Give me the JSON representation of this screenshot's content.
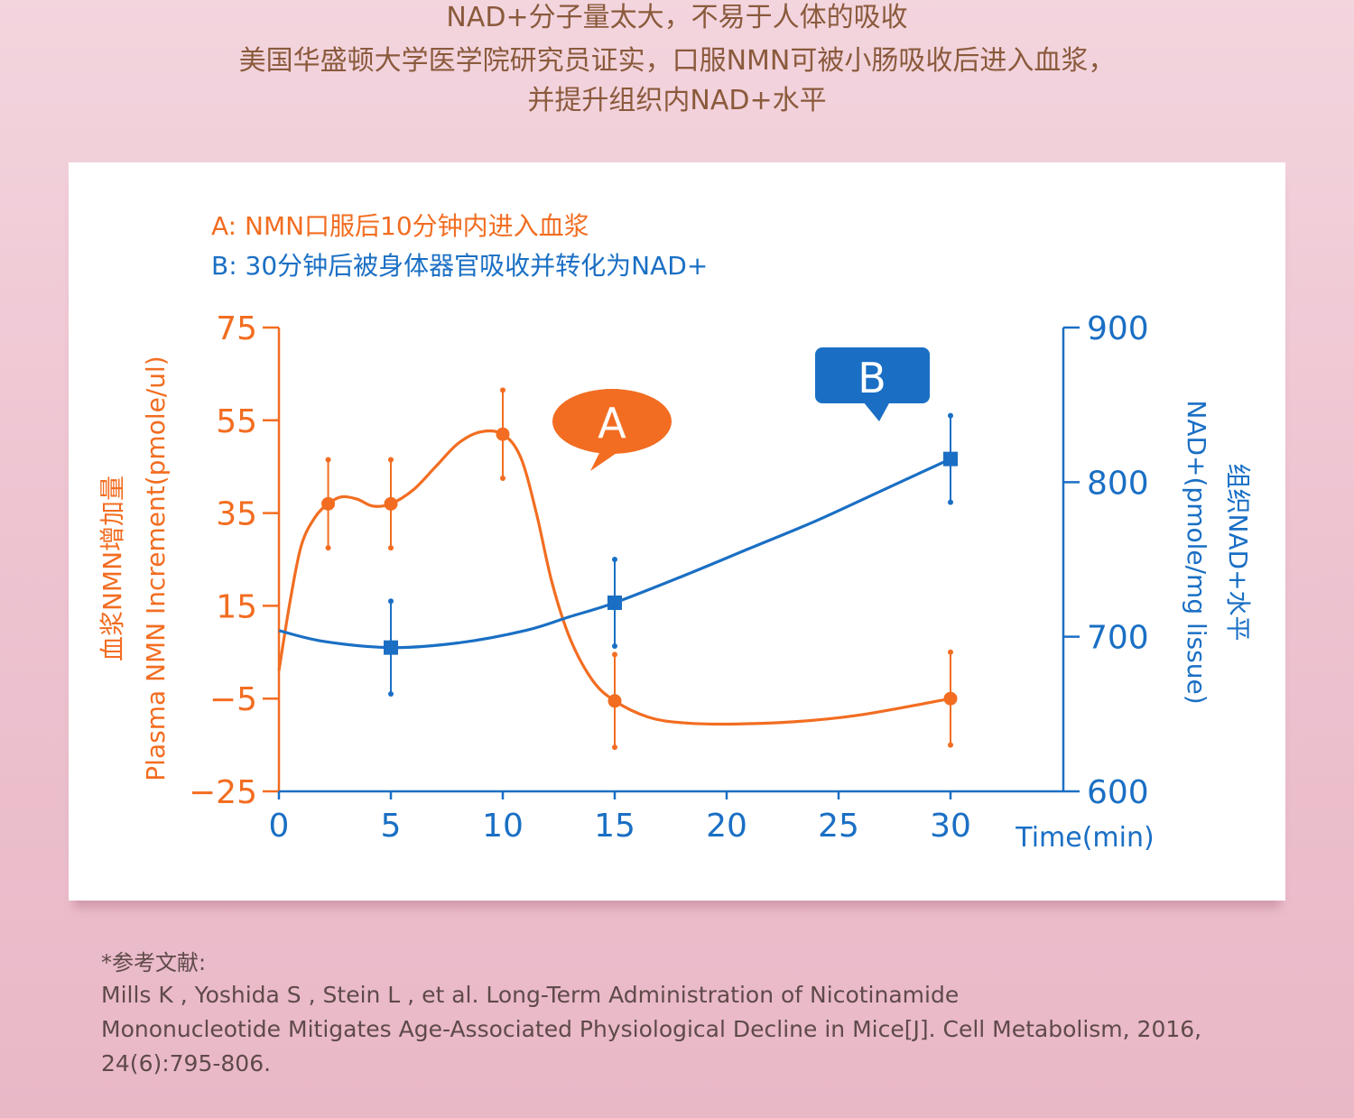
{
  "header": {
    "line1": "NAD+分子量太大，不易于人体的吸收",
    "line2": "美国华盛顿大学医学院研究员证实，口服NMN可被小肠吸收后进入血浆，",
    "line3": "并提升组织内NAD+水平"
  },
  "legend": {
    "a": "A: NMN口服后10分钟内进入血浆",
    "b": "B: 30分钟后被身体器官吸收并转化为NAD+"
  },
  "bubbles": {
    "a": "A",
    "b": "B"
  },
  "colors": {
    "orange": "#f26d21",
    "blue": "#1a6fc4",
    "brown": "#8a5a3c"
  },
  "chart_data": {
    "type": "line",
    "x_ticks": [
      0,
      5,
      10,
      15,
      20,
      25,
      30
    ],
    "x_tick_labels": [
      "0",
      "5",
      "10",
      "15",
      "20",
      "25",
      "30"
    ],
    "xlabel": "Time(min)",
    "xlim": [
      0,
      35
    ],
    "y_left": {
      "label_cn": "血浆NMN增加量",
      "label_en": "Plasma NMN Increment(pmole/ul)",
      "ticks": [
        75,
        55,
        35,
        15,
        -5,
        -25
      ],
      "tick_labels": [
        "75",
        "55",
        "35",
        "15",
        "−5",
        "−25"
      ],
      "lim": [
        -25,
        75
      ]
    },
    "y_right": {
      "label_en": "NAD+(pmole/mg lissue)",
      "label_cn": "组织NAD+水平",
      "ticks": [
        900,
        800,
        700,
        600
      ],
      "tick_labels": [
        "900",
        "800",
        "700",
        "600"
      ],
      "lim": [
        600,
        900
      ]
    },
    "series": [
      {
        "name": "Plasma NMN",
        "axis": "left",
        "color": "#f26d21",
        "points": [
          {
            "x": 2.2,
            "y": 37,
            "err": 9.5
          },
          {
            "x": 5,
            "y": 37,
            "err": 9.5
          },
          {
            "x": 10,
            "y": 52,
            "err": 9.5
          },
          {
            "x": 15,
            "y": -5.5,
            "err": 10
          },
          {
            "x": 30,
            "y": -5,
            "err": 10
          }
        ],
        "curve": [
          [
            0,
            1
          ],
          [
            0.5,
            16
          ],
          [
            1,
            28
          ],
          [
            1.6,
            34
          ],
          [
            2.2,
            37
          ],
          [
            2.8,
            38.5
          ],
          [
            3.5,
            38
          ],
          [
            4.2,
            36.5
          ],
          [
            5,
            37
          ],
          [
            6,
            40
          ],
          [
            7,
            45
          ],
          [
            8,
            50
          ],
          [
            9,
            52.5
          ],
          [
            10,
            52
          ],
          [
            10.8,
            47
          ],
          [
            11.5,
            35
          ],
          [
            12.2,
            20
          ],
          [
            13,
            8
          ],
          [
            14,
            -1
          ],
          [
            15,
            -5.5
          ],
          [
            16.5,
            -9
          ],
          [
            18,
            -10.2
          ],
          [
            20,
            -10.5
          ],
          [
            23,
            -10
          ],
          [
            26,
            -8.5
          ],
          [
            30,
            -5
          ]
        ]
      },
      {
        "name": "Tissue NAD+",
        "axis": "right",
        "color": "#1a6fc4",
        "points": [
          {
            "x": 5,
            "y": 693,
            "err": 30
          },
          {
            "x": 15,
            "y": 722,
            "err": 28
          },
          {
            "x": 30,
            "y": 815,
            "err": 28
          }
        ],
        "curve": [
          [
            0,
            704
          ],
          [
            2,
            697
          ],
          [
            5,
            693
          ],
          [
            8,
            696
          ],
          [
            11,
            704
          ],
          [
            13,
            713
          ],
          [
            15,
            722
          ],
          [
            18,
            739
          ],
          [
            21,
            757
          ],
          [
            24,
            775
          ],
          [
            27,
            795
          ],
          [
            30,
            815
          ]
        ]
      }
    ]
  },
  "references": {
    "title": "*参考文献:",
    "line1": "Mills K , Yoshida S , Stein L , et al. Long-Term Administration of Nicotinamide",
    "line2": "Mononucleotide Mitigates Age-Associated Physiological Decline in Mice[J]. Cell Metabolism, 2016,",
    "line3": "24(6):795-806."
  }
}
